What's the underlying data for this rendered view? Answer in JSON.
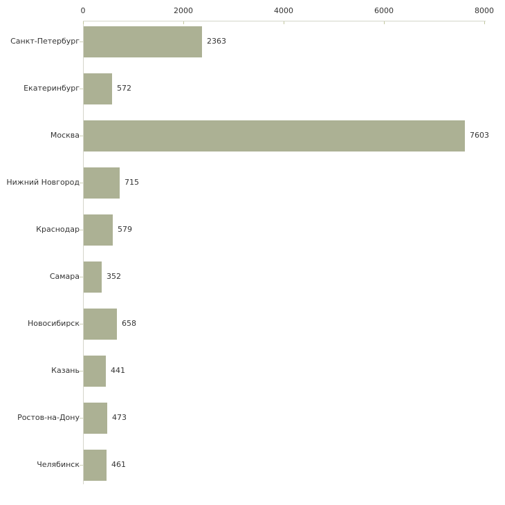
{
  "chart_data": {
    "type": "bar",
    "orientation": "horizontal",
    "title": "",
    "xlabel": "",
    "ylabel": "",
    "categories": [
      "Санкт-Петербург",
      "Екатеринбург",
      "Москва",
      "Нижний Новгород",
      "Краснодар",
      "Самара",
      "Новосибирск",
      "Казань",
      "Ростов-на-Дону",
      "Челябинск"
    ],
    "values": [
      2363,
      572,
      7603,
      715,
      579,
      352,
      658,
      441,
      473,
      461
    ],
    "value_labels": [
      "2363",
      "572",
      "7603",
      "715",
      "579",
      "352",
      "658",
      "441",
      "473",
      "461"
    ],
    "xlim": [
      0,
      8000
    ],
    "x_ticks": [
      0,
      2000,
      4000,
      6000,
      8000
    ],
    "x_tick_labels": [
      "0",
      "2000",
      "4000",
      "6000",
      "8000"
    ],
    "axis_position": "top",
    "grid": false,
    "legend": false,
    "colors": {
      "bar": "#acb194",
      "axis_line": "#d4d5ca",
      "tick_mark": "#c2c79e",
      "category_tick": "#cdd0b6",
      "text": "#333333",
      "background": "#ffffff"
    }
  }
}
